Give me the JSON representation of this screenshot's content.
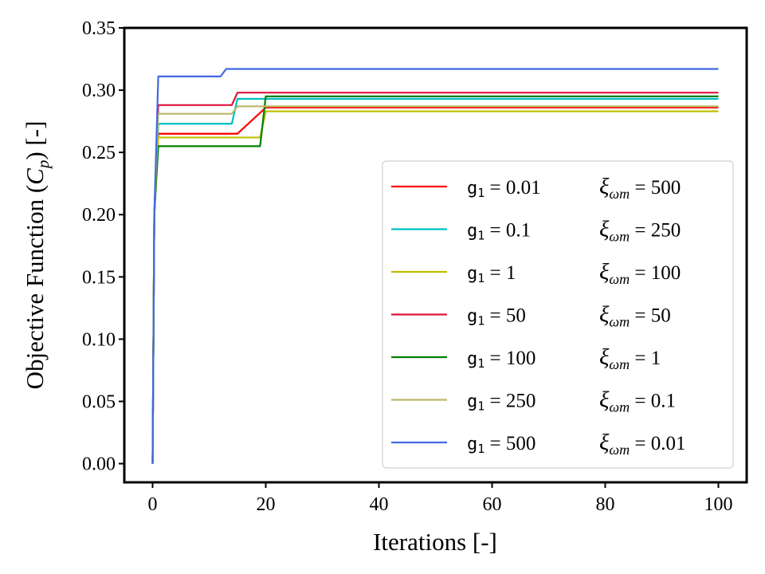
{
  "chart_data": {
    "type": "line",
    "xlabel": "Iterations [-]",
    "ylabel": "Objective Function (",
    "ylabel_symbol": "C",
    "ylabel_subscript": "p",
    "ylabel_suffix": ") [-]",
    "xlim": [
      -5,
      105
    ],
    "ylim": [
      -0.015,
      0.35
    ],
    "xticks": [
      0,
      20,
      40,
      60,
      80,
      100
    ],
    "xtick_labels": [
      "0",
      "20",
      "40",
      "60",
      "80",
      "100"
    ],
    "yticks": [
      0.0,
      0.05,
      0.1,
      0.15,
      0.2,
      0.25,
      0.3,
      0.35
    ],
    "ytick_labels": [
      "0.00",
      "0.05",
      "0.10",
      "0.15",
      "0.20",
      "0.25",
      "0.30",
      "0.35"
    ],
    "grid": false,
    "legend_position": "lower-right",
    "legend_g_prefix": "g",
    "legend_g_sub": "1",
    "legend_xi_symbol": "ξ",
    "legend_xi_sub": "ωm",
    "series": [
      {
        "name": "g1 = 0.01  ξωm = 500",
        "g_label": " = 0.01",
        "xi_label": " = 500",
        "color": "#ff0000",
        "x": [
          0,
          0.3,
          1,
          14,
          15,
          20,
          100
        ],
        "y": [
          0,
          0.2,
          0.265,
          0.265,
          0.265,
          0.286,
          0.286
        ]
      },
      {
        "name": "g1 = 0.1  ξωm = 250",
        "g_label": " = 0.1",
        "xi_label": " = 250",
        "color": "#00bfbf",
        "x": [
          0,
          0.3,
          1,
          14,
          15,
          100
        ],
        "y": [
          0,
          0.2,
          0.273,
          0.273,
          0.293,
          0.293
        ]
      },
      {
        "name": "g1 = 1  ξωm = 100",
        "g_label": " = 1",
        "xi_label": " = 100",
        "color": "#bfbf00",
        "x": [
          0,
          0.3,
          1,
          19,
          20,
          100
        ],
        "y": [
          0,
          0.2,
          0.262,
          0.262,
          0.283,
          0.283
        ]
      },
      {
        "name": "g1 = 50  ξωm = 50",
        "g_label": " = 50",
        "xi_label": " = 50",
        "color": "#dc143c",
        "x": [
          0,
          0.3,
          1,
          14,
          15,
          100
        ],
        "y": [
          0,
          0.2,
          0.288,
          0.288,
          0.298,
          0.298
        ]
      },
      {
        "name": "g1 = 100  ξωm = 1",
        "g_label": " = 100",
        "xi_label": " = 1",
        "color": "#008000",
        "x": [
          0,
          0.3,
          1,
          19,
          20,
          100
        ],
        "y": [
          0,
          0.2,
          0.255,
          0.255,
          0.295,
          0.295
        ]
      },
      {
        "name": "g1 = 250  ξωm = 0.1",
        "g_label": " = 250",
        "xi_label": " = 0.1",
        "color": "#bdb76b",
        "x": [
          0,
          0.3,
          1,
          14,
          15,
          100
        ],
        "y": [
          0,
          0.2,
          0.281,
          0.281,
          0.287,
          0.287
        ]
      },
      {
        "name": "g1 = 500  ξωm = 0.01",
        "g_label": " = 500",
        "xi_label": " = 0.01",
        "color": "#4169e1",
        "x": [
          0,
          0.3,
          1,
          12,
          13,
          100
        ],
        "y": [
          0,
          0.2,
          0.311,
          0.311,
          0.317,
          0.317
        ]
      }
    ]
  }
}
